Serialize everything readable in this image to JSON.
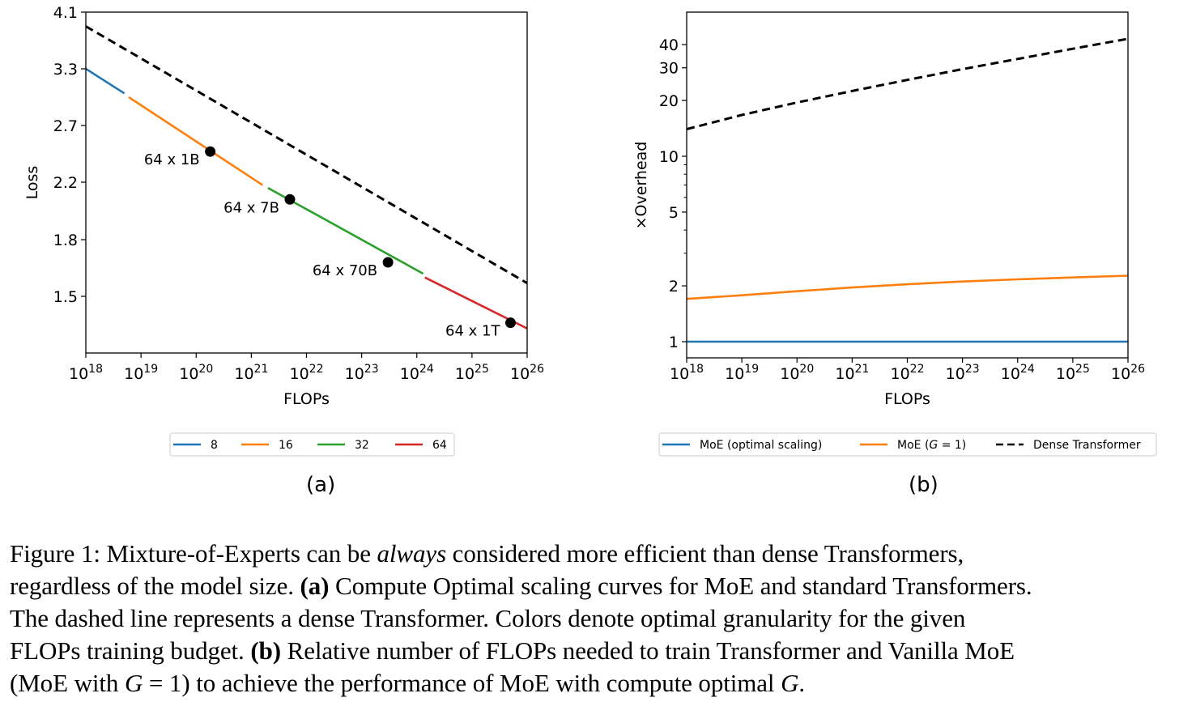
{
  "chart_data": [
    {
      "type": "line",
      "panel_label": "(a)",
      "xlabel": "FLOPs",
      "ylabel": "Loss",
      "xscale": "log",
      "xlim": [
        1e+18,
        1e+26
      ],
      "x_tick_labels": [
        "10^18",
        "10^19",
        "10^20",
        "10^21",
        "10^22",
        "10^23",
        "10^24",
        "10^25",
        "10^26"
      ],
      "y_ticks": [
        1.5,
        1.8,
        2.2,
        2.7,
        3.3,
        4.1
      ],
      "ylim_top": 4.1,
      "series": [
        {
          "name": "8",
          "color": "#1f77b4",
          "style": "solid",
          "x": [
            1e+18,
            5e+18
          ],
          "y": [
            3.3,
            3.04
          ]
        },
        {
          "name": "16",
          "color": "#ff7f0e",
          "style": "solid",
          "x": [
            6e+18,
            1.6e+21
          ],
          "y": [
            3.0,
            2.18
          ]
        },
        {
          "name": "32",
          "color": "#2ca02c",
          "style": "solid",
          "x": [
            2e+21,
            1.3e+24
          ],
          "y": [
            2.16,
            1.62
          ]
        },
        {
          "name": "64",
          "color": "#d62728",
          "style": "solid",
          "x": [
            1.4e+24,
            1e+26
          ],
          "y": [
            1.6,
            1.33
          ]
        },
        {
          "name": "",
          "color": "#000000",
          "style": "dashed",
          "x": [
            1e+18,
            1e+26
          ],
          "y": [
            3.9,
            1.57
          ]
        }
      ],
      "points": [
        {
          "label": "64 x 1B",
          "x": 1.8e+20,
          "y": 2.47
        },
        {
          "label": "64 x 7B",
          "x": 5e+21,
          "y": 2.08
        },
        {
          "label": "64 x 70B",
          "x": 3e+23,
          "y": 1.68
        },
        {
          "label": "64 x 1T",
          "x": 5e+25,
          "y": 1.36
        }
      ],
      "legend": {
        "placement": "below",
        "entries": [
          "8",
          "16",
          "32",
          "64"
        ]
      }
    },
    {
      "type": "line",
      "panel_label": "(b)",
      "xlabel": "FLOPs",
      "ylabel": "×Overhead",
      "xscale": "log",
      "yscale": "log",
      "xlim": [
        1e+18,
        1e+26
      ],
      "x_tick_labels": [
        "10^18",
        "10^19",
        "10^20",
        "10^21",
        "10^22",
        "10^23",
        "10^24",
        "10^25",
        "10^26"
      ],
      "y_ticks": [
        1,
        2,
        5,
        10,
        20,
        30,
        40
      ],
      "series": [
        {
          "name": "MoE (optimal scaling)",
          "color": "#1f77b4",
          "style": "solid",
          "x": [
            1e+18,
            1e+26
          ],
          "y": [
            1.0,
            1.0
          ]
        },
        {
          "name": "MoE (G = 1)",
          "color": "#ff7f0e",
          "style": "solid",
          "x": [
            1e+18,
            1e+19,
            1e+20,
            1e+21,
            1e+22,
            1e+23,
            1e+24,
            1e+25,
            1e+26
          ],
          "y": [
            1.7,
            1.78,
            1.87,
            1.96,
            2.04,
            2.11,
            2.17,
            2.22,
            2.27
          ]
        },
        {
          "name": "Dense Transformer",
          "color": "#000000",
          "style": "dashed",
          "x": [
            1e+18,
            1e+19,
            1e+20,
            1e+21,
            1e+22,
            1e+23,
            1e+24,
            1e+25,
            1e+26
          ],
          "y": [
            14,
            16.7,
            19.5,
            22.5,
            25.8,
            29.5,
            33.5,
            38,
            43
          ]
        }
      ],
      "legend": {
        "placement": "below",
        "entries": [
          "MoE (optimal scaling)",
          "MoE (G = 1)",
          "Dense Transformer"
        ]
      }
    }
  ],
  "caption": {
    "lines": [
      [
        "Figure 1: Mixture-of-Experts can be ",
        {
          "i": "always"
        },
        " considered more efficient than dense Transformers,"
      ],
      [
        "regardless of the model size. ",
        {
          "b": "(a)"
        },
        " Compute Optimal scaling curves for MoE and standard Transformers."
      ],
      [
        "The dashed line represents a dense Transformer. Colors denote optimal granularity for the given"
      ],
      [
        "FLOPs training budget. ",
        {
          "b": "(b)"
        },
        " Relative number of FLOPs needed to train Transformer and Vanilla MoE"
      ],
      [
        "(MoE with ",
        {
          "i": "G"
        },
        " = 1) to achieve the performance of MoE with compute optimal ",
        {
          "i": "G"
        },
        "."
      ]
    ]
  }
}
